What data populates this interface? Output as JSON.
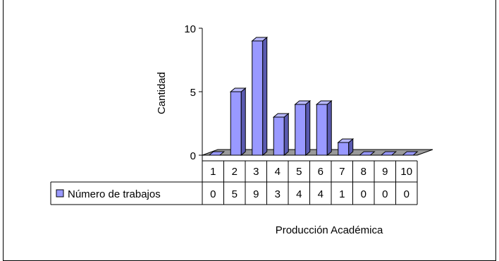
{
  "chart_data": {
    "type": "bar",
    "title": "",
    "xlabel": "Producción Académica",
    "ylabel": "Cantidad",
    "ylim": [
      0,
      10
    ],
    "yticks": [
      0,
      5,
      10
    ],
    "categories": [
      "1",
      "2",
      "3",
      "4",
      "5",
      "6",
      "7",
      "8",
      "9",
      "10"
    ],
    "series": [
      {
        "name": "Número de trabajos",
        "values": [
          0,
          5,
          9,
          3,
          4,
          4,
          1,
          0,
          0,
          0
        ],
        "color": "#9999ff"
      }
    ],
    "legend": "bottom-left (data table)",
    "grid": false,
    "style": "3d-column-with-data-table"
  }
}
